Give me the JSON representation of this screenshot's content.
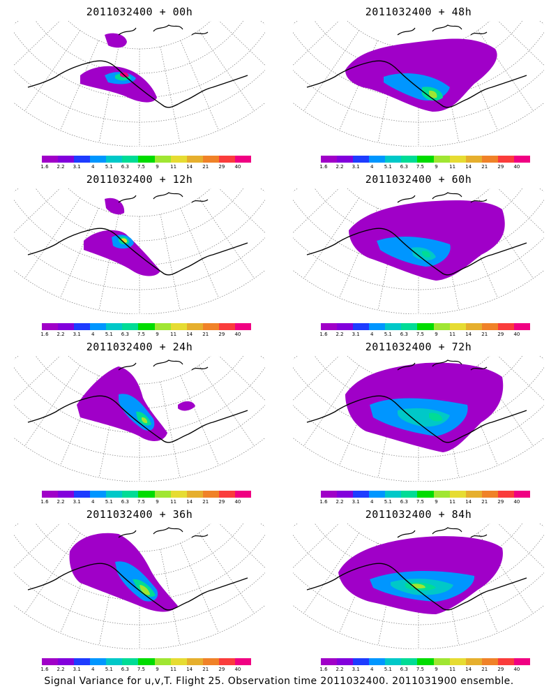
{
  "caption": "Signal Variance for u,v,T. Flight 25. Observation time 2011032400. 2011031900 ensemble.",
  "colorbar": {
    "labels": [
      "1.6",
      "2.2",
      "3.1",
      "4",
      "5.1",
      "6.3",
      "7.5",
      "9",
      "11",
      "14",
      "21",
      "29",
      "40"
    ],
    "colors": [
      "#a000c8",
      "#8200dc",
      "#1e3cff",
      "#0096ff",
      "#00c8c8",
      "#00dc96",
      "#00dc00",
      "#a0e632",
      "#e6dc32",
      "#e6af2d",
      "#f08228",
      "#fa3c3c",
      "#f00082"
    ]
  },
  "panels": [
    {
      "title": "2011032400 + 00h",
      "lead_hours": 0
    },
    {
      "title": "2011032400 + 48h",
      "lead_hours": 48
    },
    {
      "title": "2011032400 + 12h",
      "lead_hours": 12
    },
    {
      "title": "2011032400 + 60h",
      "lead_hours": 60
    },
    {
      "title": "2011032400 + 24h",
      "lead_hours": 24
    },
    {
      "title": "2011032400 + 72h",
      "lead_hours": 72
    },
    {
      "title": "2011032400 + 36h",
      "lead_hours": 36
    },
    {
      "title": "2011032400 + 84h",
      "lead_hours": 84
    }
  ]
}
